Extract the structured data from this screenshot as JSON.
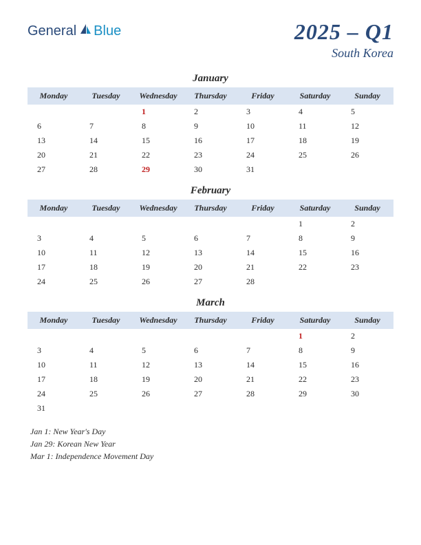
{
  "logo": {
    "part1": "General",
    "part2": "Blue"
  },
  "title": {
    "quarter": "2025 – Q1",
    "country": "South Korea"
  },
  "dayHeaders": [
    "Monday",
    "Tuesday",
    "Wednesday",
    "Thursday",
    "Friday",
    "Saturday",
    "Sunday"
  ],
  "colors": {
    "headerBg": "#dae4f2",
    "text": "#2a2a2a",
    "holiday": "#c02020",
    "brandDark": "#2a4a7a",
    "brandLight": "#1a8fc4"
  },
  "months": [
    {
      "name": "January",
      "weeks": [
        [
          "",
          "",
          {
            "d": "1",
            "h": true
          },
          "2",
          "3",
          "4",
          "5"
        ],
        [
          "6",
          "7",
          "8",
          "9",
          "10",
          "11",
          "12"
        ],
        [
          "13",
          "14",
          "15",
          "16",
          "17",
          "18",
          "19"
        ],
        [
          "20",
          "21",
          "22",
          "23",
          "24",
          "25",
          "26"
        ],
        [
          "27",
          "28",
          {
            "d": "29",
            "h": true
          },
          "30",
          "31",
          "",
          ""
        ]
      ]
    },
    {
      "name": "February",
      "weeks": [
        [
          "",
          "",
          "",
          "",
          "",
          "1",
          "2"
        ],
        [
          "3",
          "4",
          "5",
          "6",
          "7",
          "8",
          "9"
        ],
        [
          "10",
          "11",
          "12",
          "13",
          "14",
          "15",
          "16"
        ],
        [
          "17",
          "18",
          "19",
          "20",
          "21",
          "22",
          "23"
        ],
        [
          "24",
          "25",
          "26",
          "27",
          "28",
          "",
          ""
        ]
      ]
    },
    {
      "name": "March",
      "weeks": [
        [
          "",
          "",
          "",
          "",
          "",
          {
            "d": "1",
            "h": true
          },
          "2"
        ],
        [
          "3",
          "4",
          "5",
          "6",
          "7",
          "8",
          "9"
        ],
        [
          "10",
          "11",
          "12",
          "13",
          "14",
          "15",
          "16"
        ],
        [
          "17",
          "18",
          "19",
          "20",
          "21",
          "22",
          "23"
        ],
        [
          "24",
          "25",
          "26",
          "27",
          "28",
          "29",
          "30"
        ],
        [
          "31",
          "",
          "",
          "",
          "",
          "",
          ""
        ]
      ]
    }
  ],
  "holidays": [
    "Jan 1: New Year's Day",
    "Jan 29: Korean New Year",
    "Mar 1: Independence Movement Day"
  ]
}
